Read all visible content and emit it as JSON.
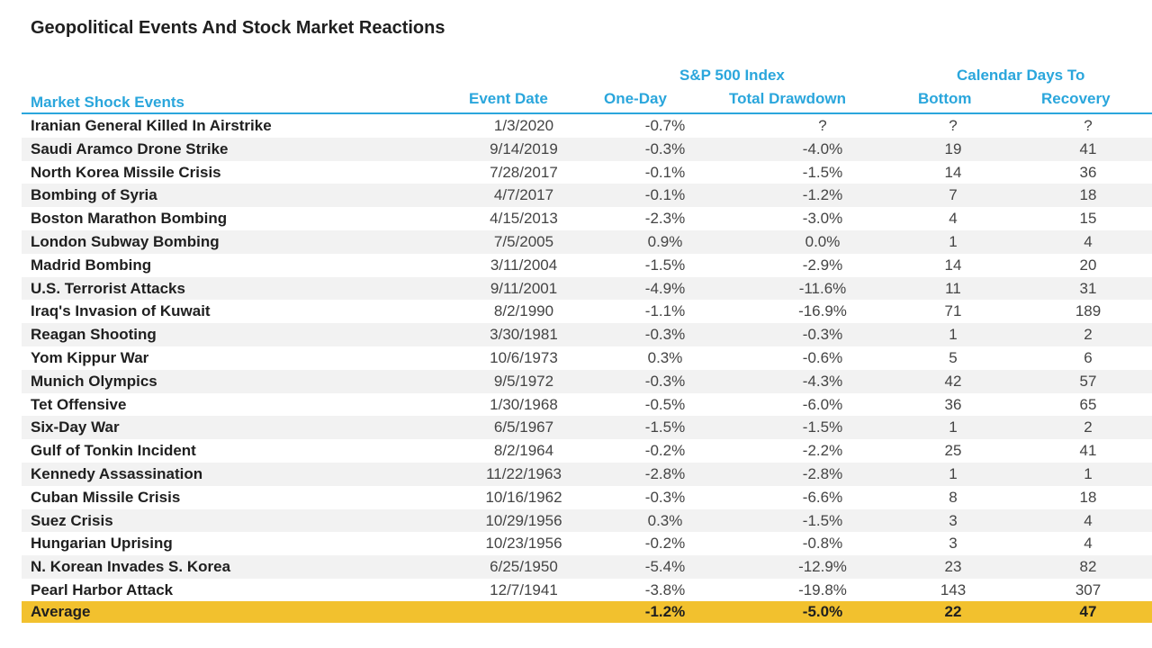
{
  "title": "Geopolitical Events And Stock Market Reactions",
  "group_headers": {
    "sp500": "S&P 500 Index",
    "calendar_days": "Calendar Days To"
  },
  "columns": {
    "event": "Market Shock Events",
    "date": "Event Date",
    "one_day": "One-Day",
    "total_drawdown": "Total Drawdown",
    "bottom": "Bottom",
    "recovery": "Recovery"
  },
  "rows": [
    {
      "event": "Iranian General Killed In Airstrike",
      "date": "1/3/2020",
      "one_day": "-0.7%",
      "drawdown": "?",
      "bottom": "?",
      "recovery": "?"
    },
    {
      "event": "Saudi Aramco Drone Strike",
      "date": "9/14/2019",
      "one_day": "-0.3%",
      "drawdown": "-4.0%",
      "bottom": "19",
      "recovery": "41"
    },
    {
      "event": "North Korea Missile Crisis",
      "date": "7/28/2017",
      "one_day": "-0.1%",
      "drawdown": "-1.5%",
      "bottom": "14",
      "recovery": "36"
    },
    {
      "event": "Bombing of Syria",
      "date": "4/7/2017",
      "one_day": "-0.1%",
      "drawdown": "-1.2%",
      "bottom": "7",
      "recovery": "18"
    },
    {
      "event": "Boston Marathon Bombing",
      "date": "4/15/2013",
      "one_day": "-2.3%",
      "drawdown": "-3.0%",
      "bottom": "4",
      "recovery": "15"
    },
    {
      "event": "London Subway Bombing",
      "date": "7/5/2005",
      "one_day": "0.9%",
      "drawdown": "0.0%",
      "bottom": "1",
      "recovery": "4"
    },
    {
      "event": "Madrid Bombing",
      "date": "3/11/2004",
      "one_day": "-1.5%",
      "drawdown": "-2.9%",
      "bottom": "14",
      "recovery": "20"
    },
    {
      "event": "U.S. Terrorist Attacks",
      "date": "9/11/2001",
      "one_day": "-4.9%",
      "drawdown": "-11.6%",
      "bottom": "11",
      "recovery": "31"
    },
    {
      "event": "Iraq's Invasion of Kuwait",
      "date": "8/2/1990",
      "one_day": "-1.1%",
      "drawdown": "-16.9%",
      "bottom": "71",
      "recovery": "189"
    },
    {
      "event": "Reagan Shooting",
      "date": "3/30/1981",
      "one_day": "-0.3%",
      "drawdown": "-0.3%",
      "bottom": "1",
      "recovery": "2"
    },
    {
      "event": "Yom Kippur War",
      "date": "10/6/1973",
      "one_day": "0.3%",
      "drawdown": "-0.6%",
      "bottom": "5",
      "recovery": "6"
    },
    {
      "event": "Munich Olympics",
      "date": "9/5/1972",
      "one_day": "-0.3%",
      "drawdown": "-4.3%",
      "bottom": "42",
      "recovery": "57"
    },
    {
      "event": "Tet Offensive",
      "date": "1/30/1968",
      "one_day": "-0.5%",
      "drawdown": "-6.0%",
      "bottom": "36",
      "recovery": "65"
    },
    {
      "event": "Six-Day War",
      "date": "6/5/1967",
      "one_day": "-1.5%",
      "drawdown": "-1.5%",
      "bottom": "1",
      "recovery": "2"
    },
    {
      "event": "Gulf of Tonkin Incident",
      "date": "8/2/1964",
      "one_day": "-0.2%",
      "drawdown": "-2.2%",
      "bottom": "25",
      "recovery": "41"
    },
    {
      "event": "Kennedy Assassination",
      "date": "11/22/1963",
      "one_day": "-2.8%",
      "drawdown": "-2.8%",
      "bottom": "1",
      "recovery": "1"
    },
    {
      "event": "Cuban Missile Crisis",
      "date": "10/16/1962",
      "one_day": "-0.3%",
      "drawdown": "-6.6%",
      "bottom": "8",
      "recovery": "18"
    },
    {
      "event": "Suez Crisis",
      "date": "10/29/1956",
      "one_day": "0.3%",
      "drawdown": "-1.5%",
      "bottom": "3",
      "recovery": "4"
    },
    {
      "event": "Hungarian Uprising",
      "date": "10/23/1956",
      "one_day": "-0.2%",
      "drawdown": "-0.8%",
      "bottom": "3",
      "recovery": "4"
    },
    {
      "event": "N. Korean Invades S. Korea",
      "date": "6/25/1950",
      "one_day": "-5.4%",
      "drawdown": "-12.9%",
      "bottom": "23",
      "recovery": "82"
    },
    {
      "event": "Pearl Harbor Attack",
      "date": "12/7/1941",
      "one_day": "-3.8%",
      "drawdown": "-19.8%",
      "bottom": "143",
      "recovery": "307"
    }
  ],
  "average": {
    "label": "Average",
    "one_day": "-1.2%",
    "drawdown": "-5.0%",
    "bottom": "22",
    "recovery": "47"
  },
  "colors": {
    "header_blue": "#2aa6dc",
    "average_highlight": "#f2c12e",
    "alt_row": "#f2f2f2"
  }
}
